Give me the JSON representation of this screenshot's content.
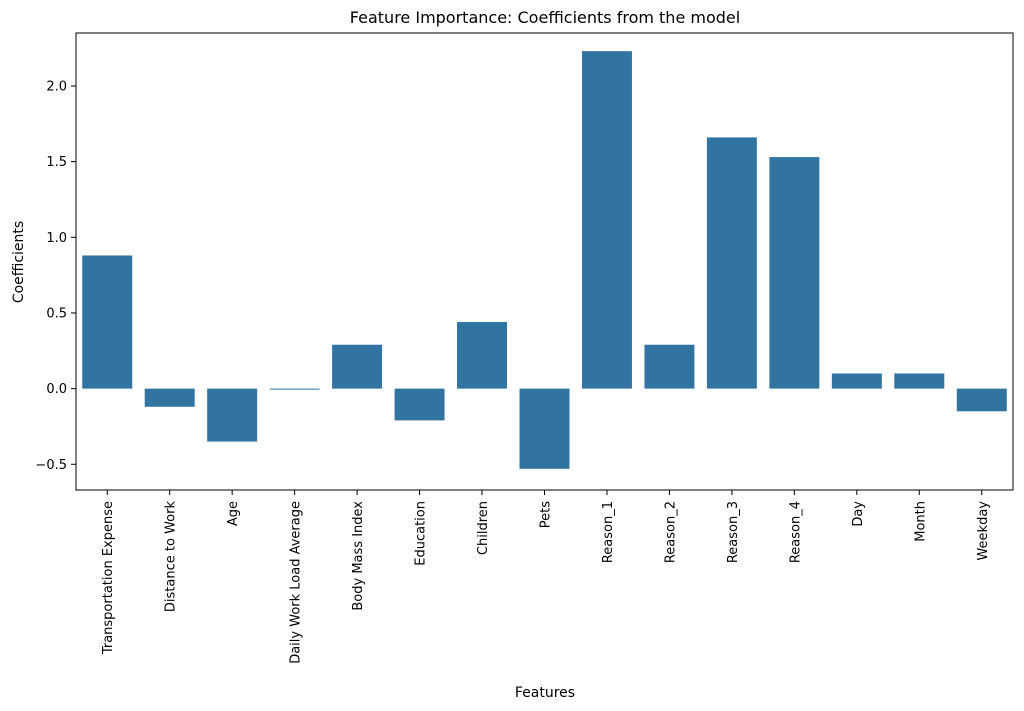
{
  "chart_data": {
    "type": "bar",
    "title": "Feature Importance: Coefficients from the model",
    "xlabel": "Features",
    "ylabel": "Coefficients",
    "categories": [
      "Transportation Expense",
      "Distance to Work",
      "Age",
      "Daily Work Load Average",
      "Body Mass Index",
      "Education",
      "Children",
      "Pets",
      "Reason_1",
      "Reason_2",
      "Reason_3",
      "Reason_4",
      "Day",
      "Month",
      "Weekday"
    ],
    "values": [
      0.88,
      -0.12,
      -0.35,
      -0.004,
      0.29,
      -0.21,
      0.44,
      -0.53,
      2.23,
      0.29,
      1.66,
      1.53,
      0.1,
      0.1,
      -0.15
    ],
    "ylim": [
      -0.67,
      2.35
    ],
    "yticks": [
      -0.5,
      0.0,
      0.5,
      1.0,
      1.5,
      2.0
    ],
    "ytick_labels": [
      "−0.5",
      "0.0",
      "0.5",
      "1.0",
      "1.5",
      "2.0"
    ],
    "bar_color": "#3274a1",
    "grid": false,
    "legend": "none"
  }
}
